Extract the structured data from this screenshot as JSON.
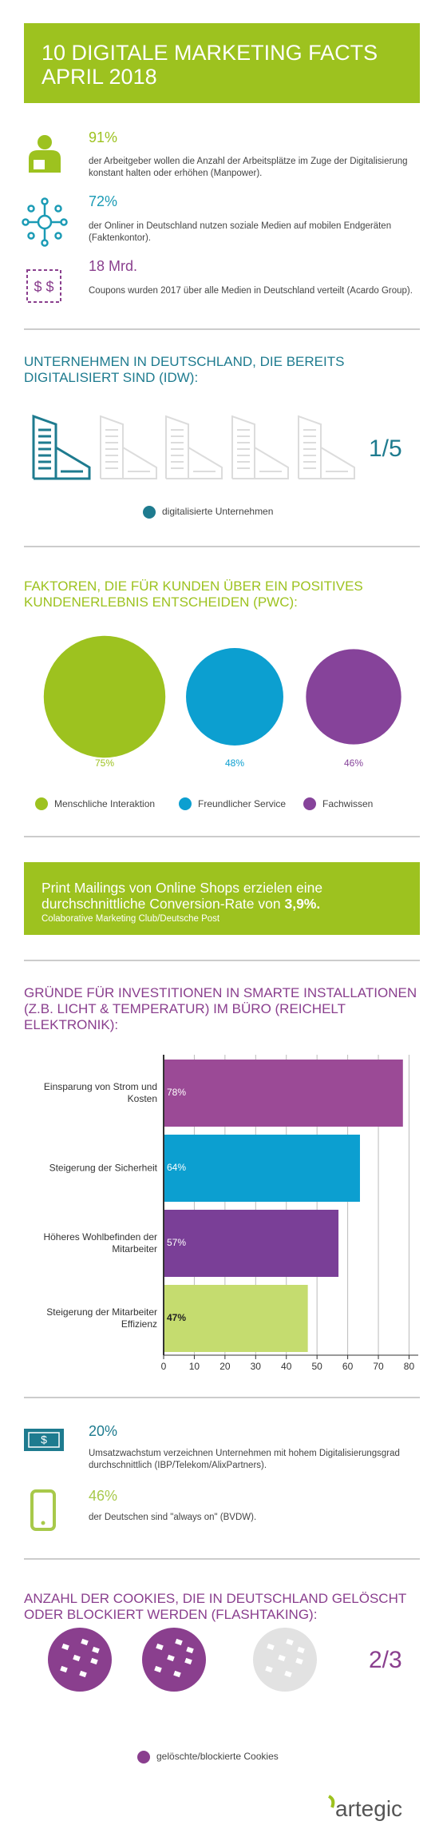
{
  "header": {
    "title": "10 DIGITALE MARKETING FACTS APRIL 2018"
  },
  "facts": [
    {
      "value": "91%",
      "text": "der Arbeitgeber wollen die Anzahl der Arbeitsplätze im Zuge der Digitalisierung konstant halten oder erhöhen (Manpower)."
    },
    {
      "value": "72%",
      "text": "der Onliner in Deutschland nutzen soziale Medien auf mobilen Endgeräten (Faktenkontor)."
    },
    {
      "value": "18 Mrd.",
      "text": "Coupons wurden 2017 über alle Medien in Deutschland verteilt (Acardo Group)."
    }
  ],
  "digitalization": {
    "title": "UNTERNEHMEN IN DEUTSCHLAND, DIE BEREITS DIGITALISIERT SIND (IDW):",
    "ratio": "1/5",
    "legend": "digitalisierte Unternehmen"
  },
  "chart_data": [
    {
      "type": "bubble",
      "title": "FAKTOREN, DIE FÜR KUNDEN ÜBER EIN POSITIVES KUNDENERLEBNIS ENTSCHEIDEN (PWC):",
      "categories": [
        "Menschliche Interaktion",
        "Freundlicher Service",
        "Fachwissen"
      ],
      "values": [
        75,
        48,
        46
      ],
      "value_labels": [
        "75%",
        "48%",
        "46%"
      ],
      "colors": [
        "#9dc21f",
        "#0c9fd0",
        "#86439a"
      ]
    },
    {
      "type": "bar",
      "title": "GRÜNDE FÜR INVESTITIONEN IN SMARTE INSTALLATIONEN (Z.B. LICHT & TEMPERATUR) IM BÜRO (REICHELT ELEKTRONIK):",
      "categories": [
        "Einsparung von Strom und Kosten",
        "Steigerung der Sicherheit",
        "Höheres Wohlbefinden der Mitarbeiter",
        "Steigerung der Mitarbeiter Effizienz"
      ],
      "values": [
        78,
        64,
        57,
        47
      ],
      "value_labels": [
        "78%",
        "64%",
        "57%",
        "47%"
      ],
      "colors": [
        "#9b4a96",
        "#0c9fd0",
        "#7a3f97",
        "#c5dc6f"
      ],
      "xlim": [
        0,
        83
      ],
      "xticks": [
        0,
        10,
        20,
        30,
        40,
        50,
        60,
        70,
        80
      ],
      "grid": true
    }
  ],
  "highlight": {
    "parts": [
      "Print Mailings von Online Shops erzielen eine durchschnittliche Conversion-Rate von ",
      "3,9%."
    ],
    "source": "Colaborative Marketing Club/Deutsche Post"
  },
  "facts2": [
    {
      "value": "20%",
      "text": "Umsatzwachstum verzeichnen Unternehmen mit hohem Digitalisierungsgrad durchschnittlich (IBP/Telekom/AlixPartners)."
    },
    {
      "value": "46%",
      "text": "der Deutschen sind \"always on\" (BVDW)."
    }
  ],
  "cookies": {
    "title": "ANZAHL DER COOKIES, DIE IN DEUTSCHLAND GELÖSCHT ODER BLOCKIERT WERDEN (FLASHTAKING):",
    "ratio": "2/3",
    "legend": "gelöschte/blockierte Cookies"
  },
  "logo": "artegic"
}
